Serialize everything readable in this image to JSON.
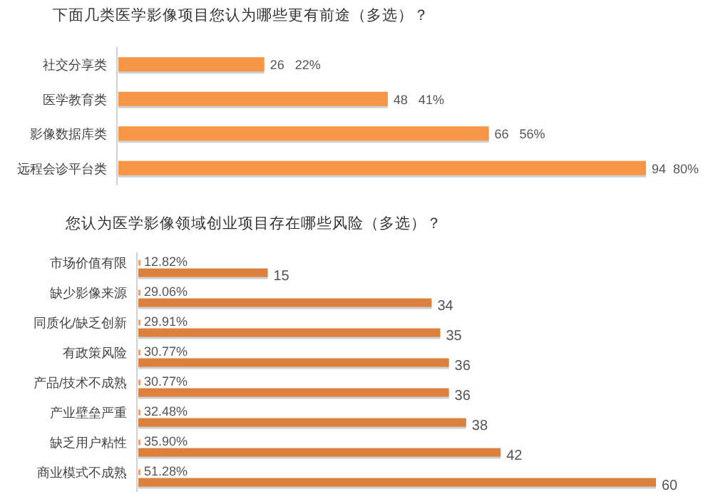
{
  "chart_data": [
    {
      "type": "bar",
      "orientation": "horizontal",
      "title": "下面几类医学影像项目您认为哪些更有前途（多选）？",
      "categories": [
        "社交分享类",
        "医学教育类",
        "影像数据库类",
        "远程会诊平台类"
      ],
      "values": [
        26,
        48,
        66,
        94
      ],
      "color": "#f79646",
      "value_labels": [
        "26   22%",
        "48   41%",
        "66   56%",
        "94  80%"
      ]
    },
    {
      "type": "bar",
      "orientation": "horizontal",
      "title": "您认为医学影像领域创业项目存在哪些风险（多选）？",
      "categories": [
        "市场价值有限",
        "缺少影像来源",
        "同质化/缺乏创新",
        "有政策风险",
        "产品/技术不成熟",
        "产业壁垒严重",
        "缺乏用户粘性",
        "商业模式不成熟"
      ],
      "values": [
        15,
        34,
        35,
        36,
        36,
        38,
        42,
        60
      ],
      "color": "#dc803e",
      "data_labels": true,
      "annotations": [
        {
          "text": "12.82%",
          "y": "市场价值有限"
        },
        {
          "text": "29.06%",
          "y": "缺少影像来源"
        },
        {
          "text": "29.91%",
          "y": "同质化/缺乏创新"
        },
        {
          "text": "30.77%",
          "y": "有政策风险"
        },
        {
          "text": "30.77%",
          "y": "产品/技术不成熟"
        },
        {
          "text": "32.48%",
          "y": "产业壁垒严重"
        },
        {
          "text": "35.90%",
          "y": "缺乏用户粘性"
        },
        {
          "text": "51.28%",
          "y": "商业模式不成熟"
        }
      ]
    }
  ]
}
